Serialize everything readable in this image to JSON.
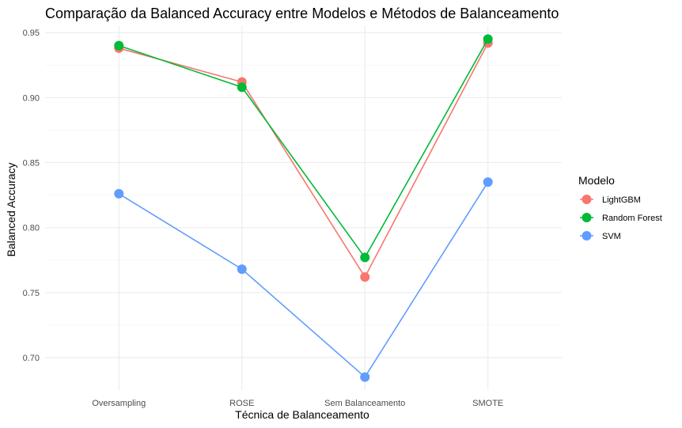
{
  "chart_data": {
    "type": "line",
    "title": "Comparação da Balanced Accuracy entre Modelos e Métodos de Balanceamento",
    "xlabel": "Técnica de Balanceamento",
    "ylabel": "Balanced Accuracy",
    "categories": [
      "Oversampling",
      "ROSE",
      "Sem Balanceamento",
      "SMOTE"
    ],
    "ylim": [
      0.675,
      0.955
    ],
    "yticks": [
      "0.70",
      "0.75",
      "0.80",
      "0.85",
      "0.90",
      "0.95"
    ],
    "ytick_values": [
      0.7,
      0.75,
      0.8,
      0.85,
      0.9,
      0.95
    ],
    "grid": true,
    "legend": {
      "title": "Modelo",
      "placement": "right"
    },
    "series": [
      {
        "name": "LightGBM",
        "color": "#F8766D",
        "values": [
          0.938,
          0.912,
          0.762,
          0.942
        ]
      },
      {
        "name": "Random Forest",
        "color": "#00BA38",
        "values": [
          0.94,
          0.908,
          0.777,
          0.945
        ]
      },
      {
        "name": "SVM",
        "color": "#619CFF",
        "values": [
          0.826,
          0.768,
          0.685,
          0.835
        ]
      }
    ]
  }
}
